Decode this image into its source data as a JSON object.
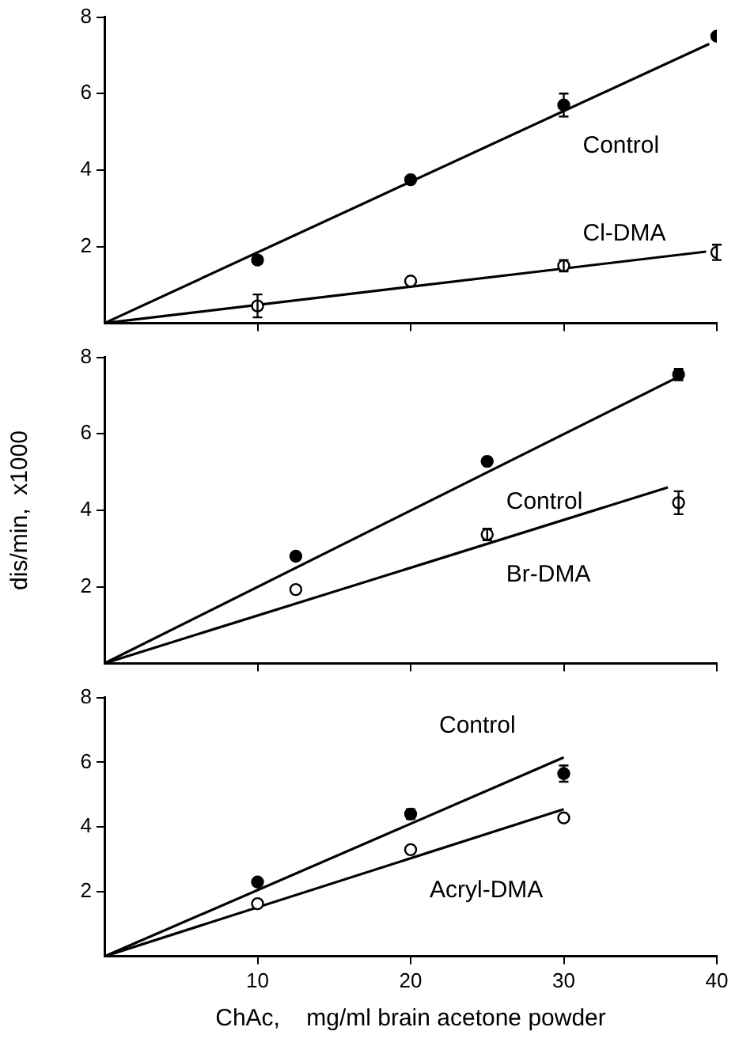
{
  "chart_data": [
    {
      "type": "scatter",
      "xlim": [
        0,
        40
      ],
      "xticks": [
        10,
        20,
        30,
        40
      ],
      "ylim": [
        0,
        8
      ],
      "yticks": [
        2,
        4,
        6,
        8
      ],
      "tick_labels": "y",
      "grid": false,
      "legend": false,
      "marker": "circle",
      "series": [
        {
          "name": "Control",
          "color": "#000000",
          "x": [
            10,
            20,
            30,
            40
          ],
          "values": [
            1.65,
            3.75,
            5.7,
            7.5
          ],
          "errors": [
            null,
            null,
            0.3,
            null
          ]
        },
        {
          "type": "line",
          "color": "#000000",
          "x": [
            0,
            39.5
          ],
          "values": [
            0,
            7.3
          ],
          "marker": "none"
        },
        {
          "name": "Cl-DMA",
          "color": "#ffffff",
          "x": [
            10,
            20,
            30,
            40
          ],
          "values": [
            0.45,
            1.1,
            1.5,
            1.85
          ],
          "errors": [
            0.3,
            null,
            0.15,
            0.2
          ]
        },
        {
          "type": "line",
          "color": "#000000",
          "x": [
            0,
            39.3
          ],
          "values": [
            0,
            1.87
          ],
          "marker": "none"
        }
      ]
    },
    {
      "type": "scatter",
      "ylabel": "dis/min,  x1000",
      "xlim": [
        0,
        40
      ],
      "xticks": [
        10,
        20,
        30,
        40
      ],
      "ylim": [
        0,
        8
      ],
      "yticks": [
        2,
        4,
        6,
        8
      ],
      "tick_labels": "y",
      "grid": false,
      "legend": false,
      "marker": "circle",
      "series": [
        {
          "name": "Control",
          "color": "#000000",
          "x": [
            12.5,
            25,
            37.5
          ],
          "values": [
            2.8,
            5.28,
            7.55
          ],
          "errors": [
            null,
            null,
            0.15
          ]
        },
        {
          "type": "line",
          "color": "#000000",
          "x": [
            0,
            37.3
          ],
          "values": [
            0,
            7.45
          ],
          "marker": "none"
        },
        {
          "name": "Br-DMA",
          "color": "#ffffff",
          "x": [
            12.5,
            25,
            37.5
          ],
          "values": [
            1.93,
            3.37,
            4.2
          ],
          "errors": [
            null,
            0.15,
            0.3
          ]
        },
        {
          "type": "line",
          "color": "#000000",
          "x": [
            0,
            36.8
          ],
          "values": [
            0,
            4.6
          ],
          "marker": "none"
        }
      ]
    },
    {
      "type": "scatter",
      "xlabel": "ChAc,    mg/ml brain acetone powder",
      "xlim": [
        0,
        40
      ],
      "xticks": [
        10,
        20,
        30,
        40
      ],
      "ylim": [
        0,
        8
      ],
      "yticks": [
        2,
        4,
        6,
        8
      ],
      "grid": false,
      "legend": false,
      "marker": "circle",
      "series": [
        {
          "name": "Control",
          "color": "#000000",
          "x": [
            10,
            20,
            30
          ],
          "values": [
            2.3,
            4.4,
            5.65
          ],
          "errors": [
            null,
            0.15,
            0.25
          ]
        },
        {
          "type": "line",
          "color": "#000000",
          "x": [
            0,
            30
          ],
          "values": [
            0,
            6.15
          ],
          "marker": "none"
        },
        {
          "name": "Acryl-DMA",
          "color": "#ffffff",
          "x": [
            10,
            20,
            30
          ],
          "values": [
            1.63,
            3.3,
            4.28
          ],
          "errors": [
            null,
            null,
            null
          ]
        },
        {
          "type": "line",
          "color": "#000000",
          "x": [
            0,
            30
          ],
          "values": [
            0,
            4.55
          ],
          "marker": "none"
        }
      ]
    }
  ]
}
